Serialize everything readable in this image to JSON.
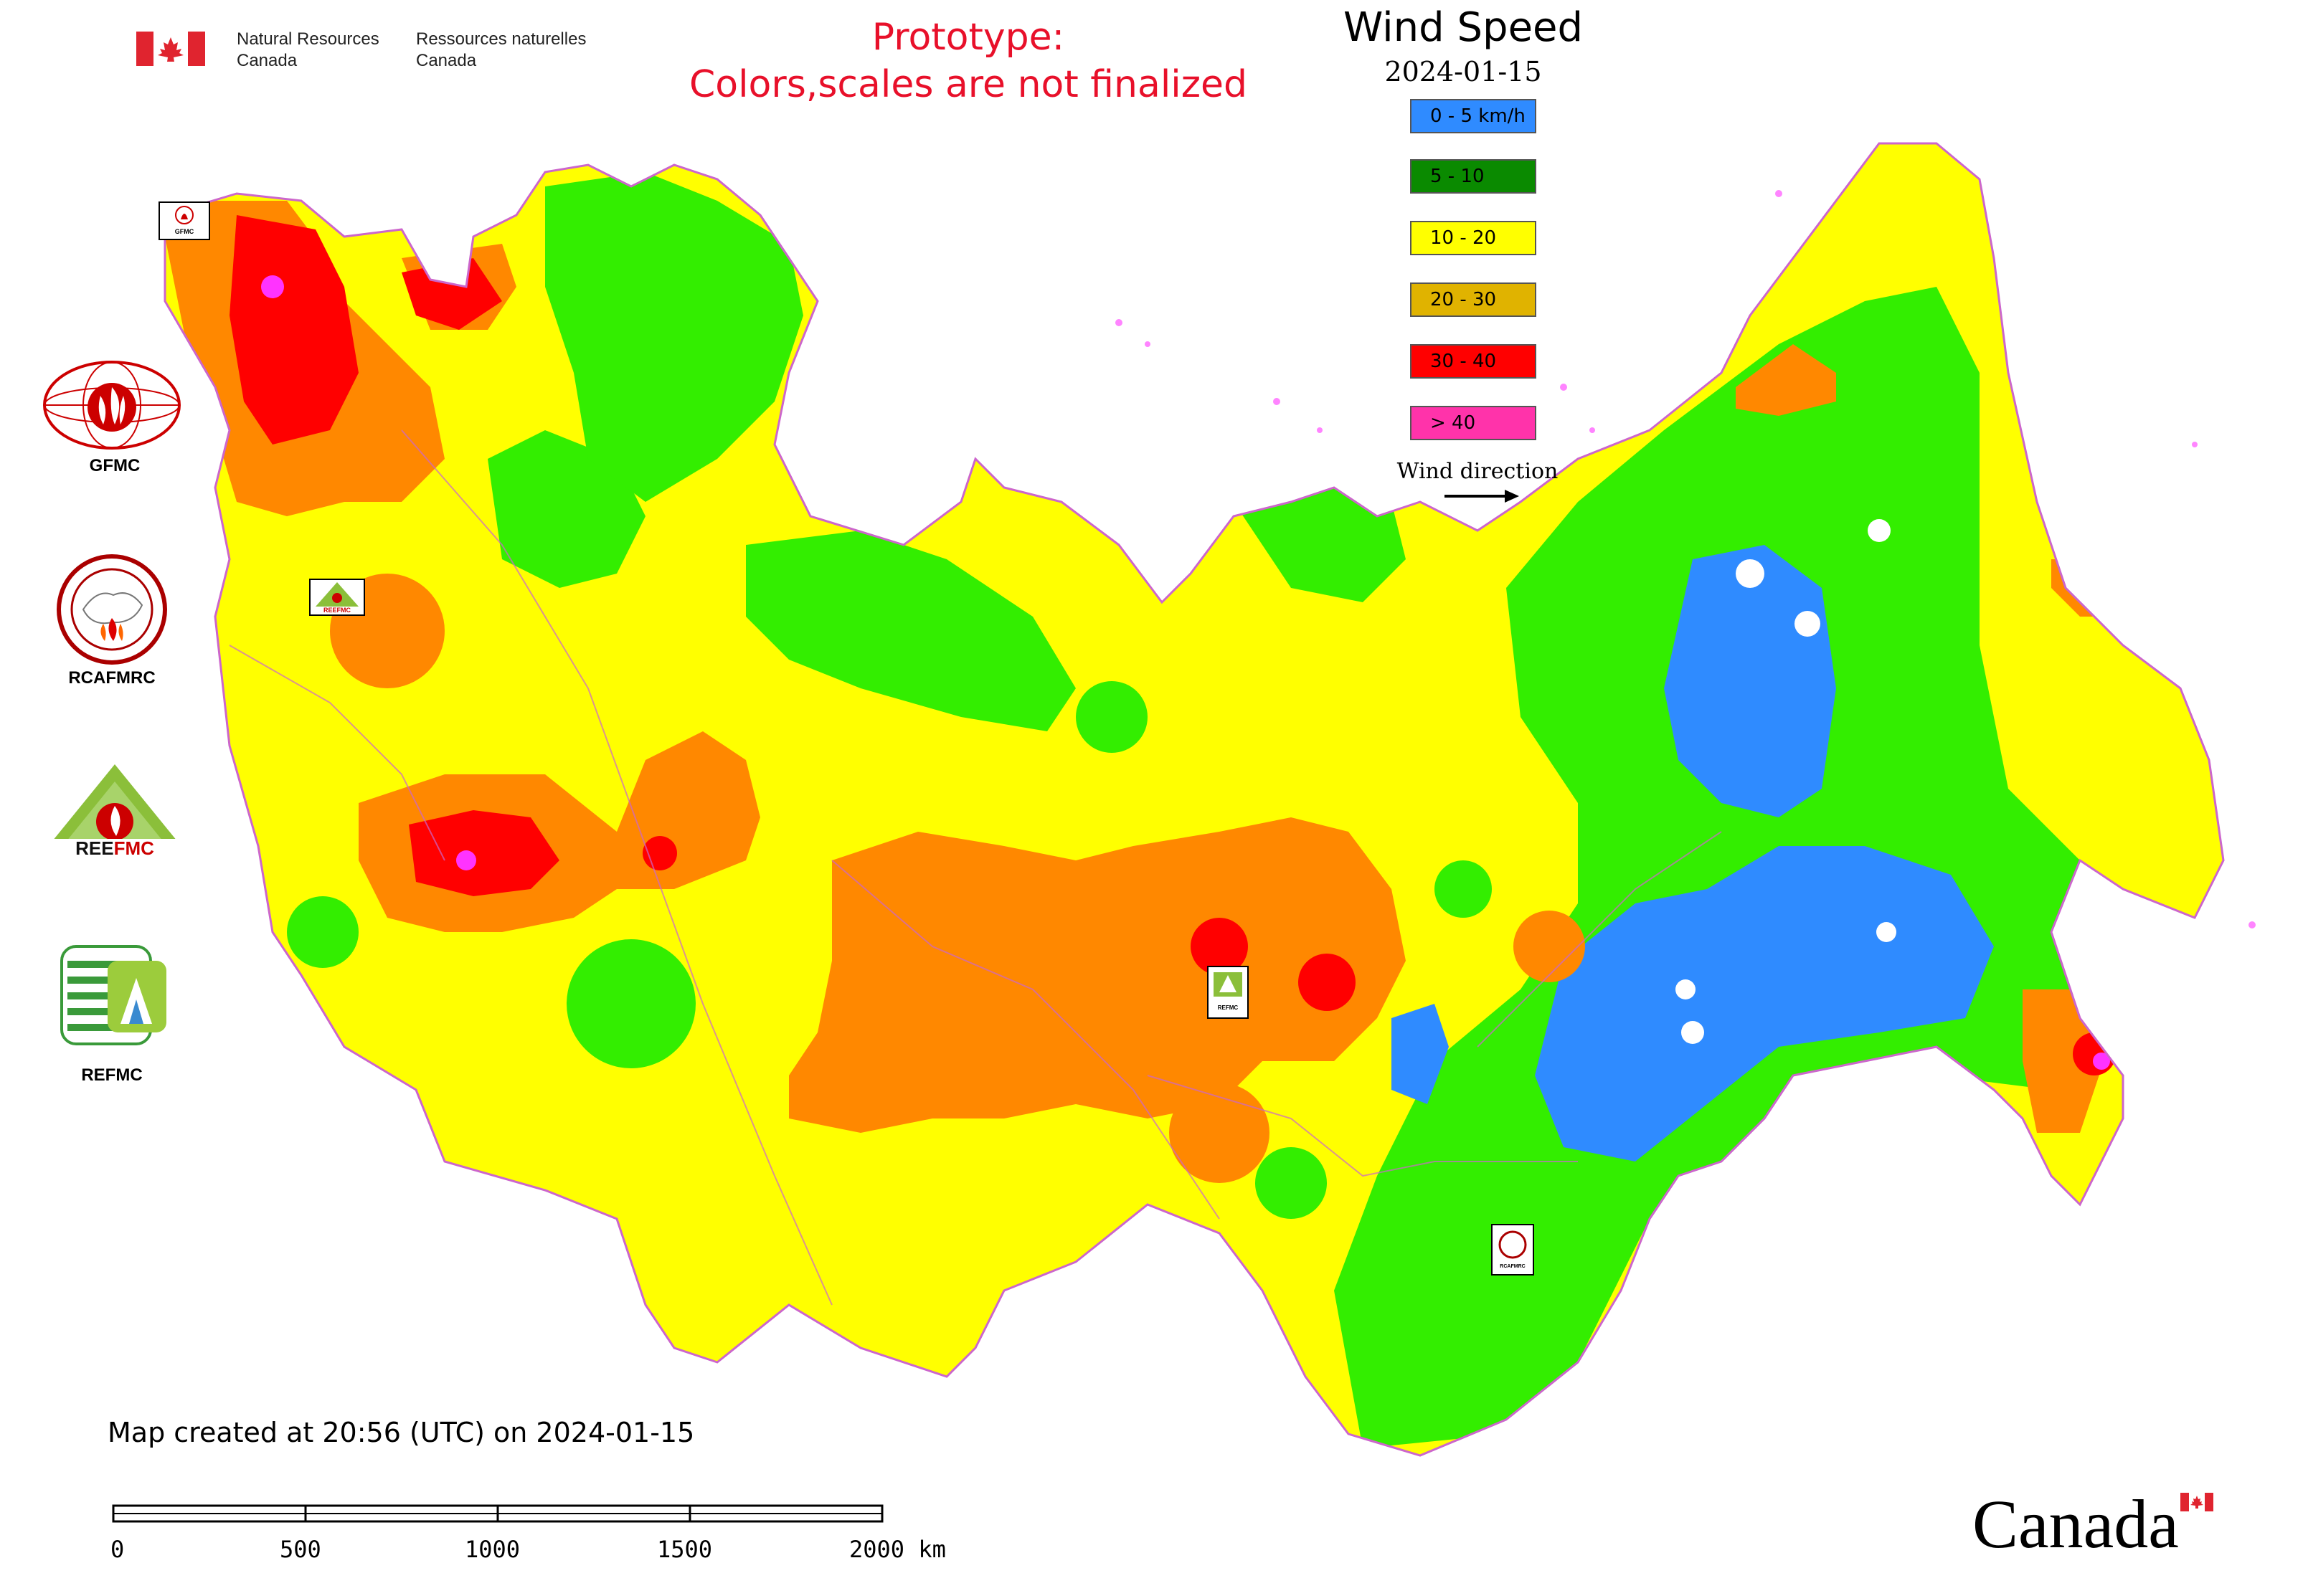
{
  "header": {
    "gov_en_line1": "Natural Resources",
    "gov_en_line2": "Canada",
    "gov_fr_line1": "Ressources naturelles",
    "gov_fr_line2": "Canada",
    "prototype_line1": "Prototype:",
    "prototype_line2": "Colors,scales are not finalized"
  },
  "legend": {
    "title": "Wind Speed",
    "date": "2024-01-15",
    "items": [
      {
        "label": "0 - 5 km/h",
        "color": "#2f8bff"
      },
      {
        "label": "5 - 10",
        "color": "#0a8a00"
      },
      {
        "label": "10 - 20",
        "color": "#ffff00"
      },
      {
        "label": "20 - 30",
        "color": "#e0b300"
      },
      {
        "label": "30 - 40",
        "color": "#ff0000"
      },
      {
        "label": "> 40",
        "color": "#ff33aa"
      }
    ],
    "wind_direction_label": "Wind direction"
  },
  "logos": {
    "gfmc": "GFMC",
    "rcafmrc": "RCAFMRC",
    "reefmc": "REEFMC",
    "refmc": "REFMC",
    "map_marker_gfmc": "GFMC",
    "map_marker_reefmc": "REEFMC",
    "map_marker_refmc": "REFMC",
    "map_marker_rcafmrc": "RCAFMRC"
  },
  "map_colors": {
    "calm": "#2f8bff",
    "light": "#33ee00",
    "moderate": "#ffff00",
    "fresh": "#ff8800",
    "strong": "#ff0000",
    "gale": "#ff33ff",
    "boundary": "#cc66cc"
  },
  "footer": {
    "created": "Map created at 20:56 (UTC) on 2024-01-15",
    "scale_ticks": [
      "0",
      "500",
      "1000",
      "1500",
      "2000 km"
    ],
    "wordmark": "Canada"
  }
}
